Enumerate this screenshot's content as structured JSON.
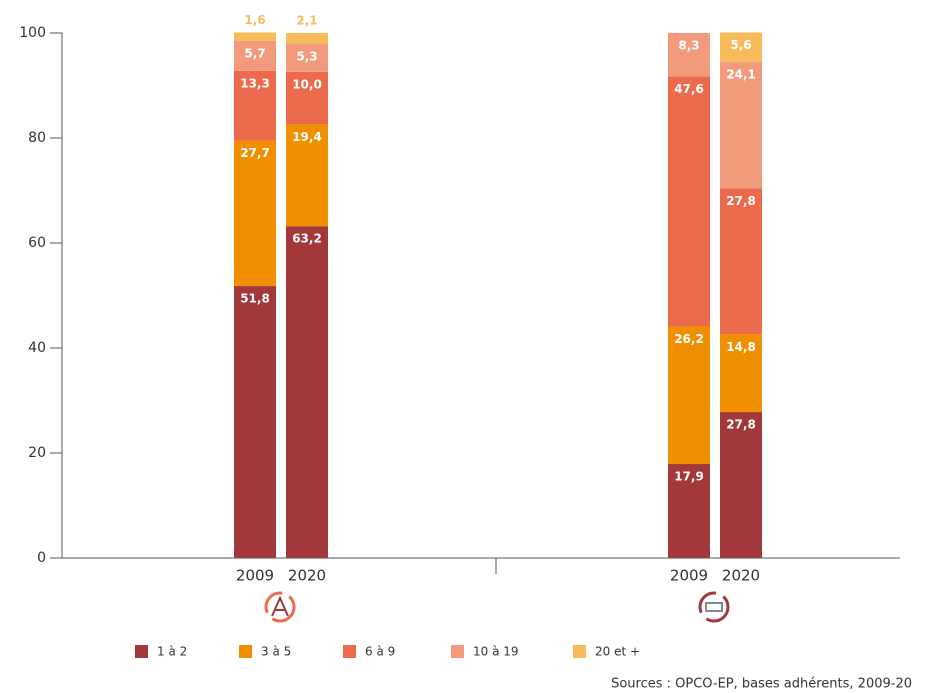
{
  "chart_data": {
    "type": "stacked_bar",
    "categories": [
      "2009",
      "2020",
      "2009",
      "2020"
    ],
    "series": [
      {
        "name": "1 à 2",
        "color": "#a3383a",
        "values": [
          51.8,
          63.2,
          17.9,
          27.8
        ],
        "value_labels": [
          "51,8",
          "63,2",
          "17,9",
          "27,8"
        ]
      },
      {
        "name": "3 à 5",
        "color": "#f09000",
        "values": [
          27.7,
          19.4,
          26.2,
          14.8
        ],
        "value_labels": [
          "27,7",
          "19,4",
          "26,2",
          "14,8"
        ]
      },
      {
        "name": "6 à 9",
        "color": "#ec6a4c",
        "values": [
          13.3,
          10.0,
          47.6,
          27.8
        ],
        "value_labels": [
          "13,3",
          "10,0",
          "47,6",
          "27,8"
        ]
      },
      {
        "name": "10 à 19",
        "color": "#f29b7c",
        "values": [
          5.7,
          5.3,
          8.3,
          24.1
        ],
        "value_labels": [
          "5,7",
          "5,3",
          "8,3",
          "24,1"
        ]
      },
      {
        "name": "20 et +",
        "color": "#f8bb5a",
        "values": [
          1.6,
          2.1,
          null,
          5.6
        ],
        "value_labels": [
          "1,6",
          "2,1",
          null,
          "5,6"
        ]
      }
    ],
    "ylim": [
      0,
      100
    ],
    "yticks": [
      0,
      20,
      40,
      60,
      80,
      100
    ],
    "source": "Sources : OPCO-EP, bases adhérents, 2009-20"
  }
}
